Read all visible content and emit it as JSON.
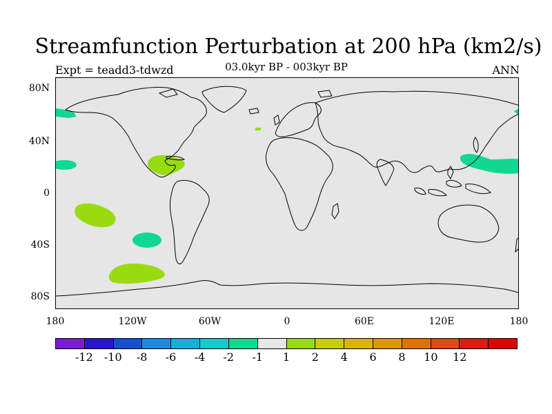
{
  "title": "Streamfunction Perturbation at 200 hPa (km2/s)",
  "subtitle": "03.0kyr BP - 003kyr BP",
  "left_label": "Expt = teadd3-tdwzd",
  "right_label": "ANN",
  "map": {
    "background_color": "#e6e6e6",
    "lat_labels": [
      "80N",
      "40N",
      "0",
      "40S",
      "80S"
    ],
    "lon_labels": [
      "180",
      "120W",
      "60W",
      "0",
      "60E",
      "120E",
      "180"
    ]
  },
  "colorbar": {
    "colors": [
      "#7a1cd6",
      "#2a14d0",
      "#1450d0",
      "#1a8ae0",
      "#14b0d8",
      "#10cccc",
      "#10d890",
      "#e6e6e6",
      "#98dc10",
      "#c8cc00",
      "#dcb400",
      "#e09400",
      "#e07000",
      "#e04814",
      "#e01a10",
      "#e00000"
    ],
    "labels": [
      "-12",
      "-10",
      "-8",
      "-6",
      "-4",
      "-2",
      "-1",
      "1",
      "2",
      "4",
      "6",
      "8",
      "10",
      "12"
    ]
  },
  "regions": [
    {
      "name": "north-pacific-high-lat-negative",
      "color": "#10d890"
    },
    {
      "name": "east-pacific-subtropical-negative",
      "color": "#10d890"
    },
    {
      "name": "west-pacific-subtropical-negative",
      "color": "#10d890"
    },
    {
      "name": "south-pacific-midlat-negative",
      "color": "#10d890"
    },
    {
      "name": "arctic-east-negative",
      "color": "#10d890"
    },
    {
      "name": "central-america-positive",
      "color": "#98dc10"
    },
    {
      "name": "north-atlantic-small-positive",
      "color": "#98dc10"
    },
    {
      "name": "south-pacific-subtropical-positive",
      "color": "#98dc10"
    },
    {
      "name": "southern-ocean-positive",
      "color": "#98dc10"
    }
  ]
}
